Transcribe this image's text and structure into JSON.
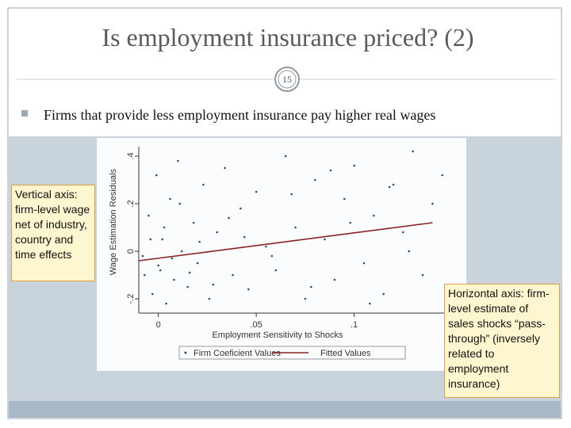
{
  "slide": {
    "title": "Is employment insurance priced? (2)",
    "page_number": "15",
    "bullet": "Firms that provide less employment insurance pay higher real wages",
    "callouts": [
      "Vertical axis: firm-level wage net of industry, country and time effects",
      "Horizontal axis: firm-level estimate of sales shocks “pass-through” (inversely related to employment insurance)"
    ]
  },
  "chart_data": {
    "type": "scatter",
    "x_label": "Employment Sensitivity to Shocks",
    "y_label": "Wage Estimation Residuals",
    "xlim": [
      -0.01,
      0.152
    ],
    "ylim": [
      -0.26,
      0.44
    ],
    "xticks": [
      {
        "value": 0,
        "label": "0"
      },
      {
        "value": 0.05,
        "label": ".05"
      },
      {
        "value": 0.1,
        "label": ".1"
      }
    ],
    "yticks": [
      {
        "value": -0.2,
        "label": "-.2"
      },
      {
        "value": 0,
        "label": "0"
      },
      {
        "value": 0.2,
        "label": ".2"
      },
      {
        "value": 0.4,
        "label": ".4"
      }
    ],
    "grid": false,
    "legend": "bottom",
    "series": [
      {
        "name": "Firm Coeficient Values",
        "mark": "point",
        "color": "#2b4f74",
        "x": [
          -0.008,
          -0.005,
          -0.003,
          -0.001,
          0.001,
          0.002,
          0.004,
          0.006,
          0.008,
          0.01,
          0.012,
          0.015,
          0.018,
          0.02,
          0.023,
          0.026,
          0.03,
          0.034,
          0.038,
          0.042,
          0.046,
          0.05,
          0.055,
          0.06,
          0.065,
          0.07,
          0.075,
          0.08,
          0.085,
          0.09,
          0.095,
          0.1,
          0.105,
          0.11,
          0.115,
          0.12,
          0.125,
          0.13,
          0.135,
          0.14,
          0.145,
          -0.007,
          -0.004,
          0.0,
          0.003,
          0.007,
          0.011,
          0.016,
          0.021,
          0.028,
          0.036,
          0.044,
          0.058,
          0.068,
          0.078,
          0.088,
          0.098,
          0.108,
          0.118,
          0.128
        ],
        "values": [
          -0.02,
          0.15,
          -0.18,
          0.32,
          -0.08,
          0.05,
          -0.22,
          0.22,
          -0.12,
          0.38,
          0.0,
          -0.15,
          0.12,
          -0.05,
          0.28,
          -0.2,
          0.08,
          0.35,
          -0.1,
          0.18,
          -0.16,
          0.25,
          0.02,
          -0.08,
          0.4,
          0.1,
          -0.2,
          0.3,
          0.05,
          -0.12,
          0.22,
          0.36,
          -0.05,
          0.15,
          -0.18,
          0.28,
          0.08,
          0.42,
          -0.1,
          0.2,
          0.32,
          -0.1,
          0.05,
          -0.06,
          0.1,
          -0.03,
          0.2,
          -0.09,
          0.04,
          -0.14,
          0.14,
          0.06,
          -0.02,
          0.24,
          -0.15,
          0.34,
          0.12,
          -0.22,
          0.27,
          0.0
        ]
      },
      {
        "name": "Fitted Values",
        "mark": "line",
        "color": "#8b2323",
        "x": [
          -0.01,
          0.14
        ],
        "values": [
          -0.04,
          0.12
        ]
      }
    ]
  }
}
